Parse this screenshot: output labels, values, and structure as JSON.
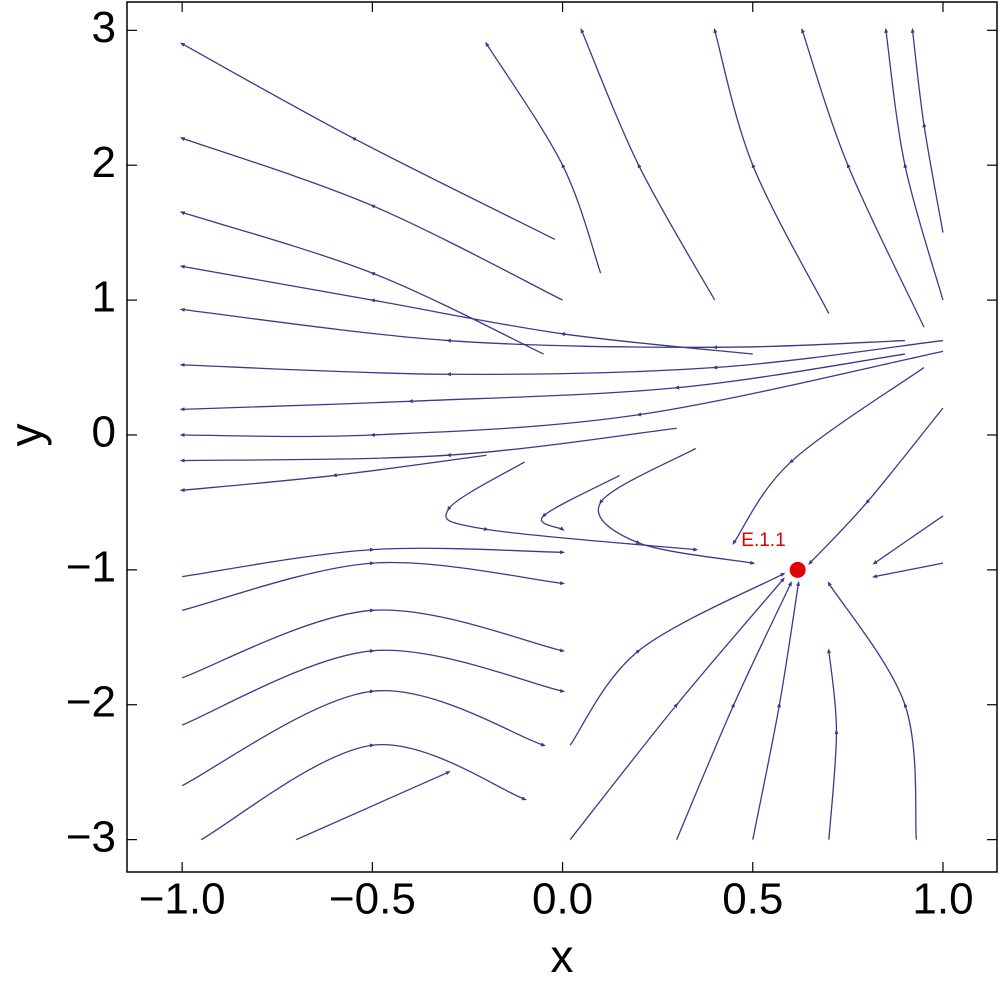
{
  "chart_data": {
    "type": "streamplot",
    "xlabel": "x",
    "ylabel": "y",
    "xlim": [
      -1.145,
      1.142
    ],
    "ylim": [
      -3.24,
      3.21
    ],
    "xticks": [
      {
        "value": -1,
        "label": "−1.0"
      },
      {
        "value": -0.5,
        "label": "−0.5"
      },
      {
        "value": 0,
        "label": "0.0"
      },
      {
        "value": 0.5,
        "label": "0.5"
      },
      {
        "value": 1,
        "label": "1.0"
      }
    ],
    "yticks": [
      {
        "value": -3,
        "label": "−3"
      },
      {
        "value": -2,
        "label": "−2"
      },
      {
        "value": -1,
        "label": "−1"
      },
      0,
      1,
      2,
      3
    ],
    "streamlines": {
      "color": "#3a3a8c",
      "lines": [
        {
          "x": [
            -0.02,
            -0.55,
            -1
          ],
          "y": [
            1.45,
            2.2,
            2.9
          ]
        },
        {
          "x": [
            0,
            -0.5,
            -1
          ],
          "y": [
            1.0,
            1.7,
            2.2
          ]
        },
        {
          "x": [
            -0.05,
            -0.5,
            -1
          ],
          "y": [
            0.6,
            1.2,
            1.65
          ]
        },
        {
          "x": [
            0.5,
            0,
            -0.5,
            -1
          ],
          "y": [
            0.6,
            0.75,
            1.0,
            1.25
          ]
        },
        {
          "x": [
            0.9,
            0.4,
            -0.3,
            -1
          ],
          "y": [
            0.7,
            0.65,
            0.7,
            0.93
          ]
        },
        {
          "x": [
            1,
            0.4,
            -0.3,
            -1
          ],
          "y": [
            0.7,
            0.5,
            0.45,
            0.52
          ]
        },
        {
          "x": [
            0.9,
            0.3,
            -0.4,
            -1
          ],
          "y": [
            0.6,
            0.35,
            0.25,
            0.19
          ]
        },
        {
          "x": [
            1,
            0.2,
            -0.5,
            -1
          ],
          "y": [
            0.62,
            0.15,
            0.0,
            0.0
          ]
        },
        {
          "x": [
            0.3,
            -0.3,
            -1
          ],
          "y": [
            0.05,
            -0.15,
            -0.19
          ]
        },
        {
          "x": [
            -0.2,
            -0.6,
            -1
          ],
          "y": [
            -0.15,
            -0.3,
            -0.41
          ]
        },
        {
          "x": [
            0.1,
            0.0,
            -0.2
          ],
          "y": [
            1.2,
            2.0,
            2.9
          ]
        },
        {
          "x": [
            0.4,
            0.2,
            0.05
          ],
          "y": [
            1.0,
            2.0,
            3.0
          ]
        },
        {
          "x": [
            0.7,
            0.5,
            0.4
          ],
          "y": [
            0.9,
            2.0,
            3.0
          ]
        },
        {
          "x": [
            0.95,
            0.75,
            0.63
          ],
          "y": [
            0.8,
            2.0,
            3.0
          ]
        },
        {
          "x": [
            1,
            0.9,
            0.85
          ],
          "y": [
            1.0,
            2.0,
            3.0
          ]
        },
        {
          "x": [
            1,
            0.95,
            0.92
          ],
          "y": [
            1.5,
            2.3,
            3.0
          ]
        },
        {
          "x": [
            0.95,
            0.6,
            0.45
          ],
          "y": [
            0.5,
            -0.2,
            -0.8
          ]
        },
        {
          "x": [
            0.35,
            0.1,
            0.2,
            0.5
          ],
          "y": [
            -0.1,
            -0.5,
            -0.8,
            -0.95
          ]
        },
        {
          "x": [
            0.15,
            -0.05,
            0.0
          ],
          "y": [
            -0.3,
            -0.6,
            -0.7
          ]
        },
        {
          "x": [
            -0.1,
            -0.3,
            -0.2,
            0.35
          ],
          "y": [
            -0.2,
            -0.55,
            -0.7,
            -0.85
          ]
        },
        {
          "x": [
            1,
            0.8,
            0.65
          ],
          "y": [
            0.2,
            -0.5,
            -0.95
          ]
        },
        {
          "x": [
            -1,
            -0.5,
            0
          ],
          "y": [
            -1.05,
            -0.85,
            -0.87
          ]
        },
        {
          "x": [
            -1,
            -0.5,
            0
          ],
          "y": [
            -1.3,
            -0.95,
            -1.1
          ]
        },
        {
          "x": [
            -1,
            -0.5,
            0
          ],
          "y": [
            -1.8,
            -1.3,
            -1.6
          ]
        },
        {
          "x": [
            -1,
            -0.5,
            0
          ],
          "y": [
            -2.15,
            -1.6,
            -1.9
          ]
        },
        {
          "x": [
            -1,
            -0.5,
            -0.05
          ],
          "y": [
            -2.6,
            -1.9,
            -2.3
          ]
        },
        {
          "x": [
            -0.95,
            -0.5,
            -0.1
          ],
          "y": [
            -3,
            -2.3,
            -2.7
          ]
        },
        {
          "x": [
            -0.7,
            -0.3
          ],
          "y": [
            -3,
            -2.5
          ]
        },
        {
          "x": [
            0.02,
            0.2,
            0.58
          ],
          "y": [
            -2.3,
            -1.6,
            -1.03
          ]
        },
        {
          "x": [
            0.02,
            0.3,
            0.58
          ],
          "y": [
            -3,
            -2.0,
            -1.07
          ]
        },
        {
          "x": [
            0.3,
            0.45,
            0.6
          ],
          "y": [
            -3,
            -2.0,
            -1.1
          ]
        },
        {
          "x": [
            0.5,
            0.57,
            0.62
          ],
          "y": [
            -3,
            -2.0,
            -1.1
          ]
        },
        {
          "x": [
            0.7,
            0.72,
            0.7
          ],
          "y": [
            -3,
            -2.2,
            -1.6
          ]
        },
        {
          "x": [
            0.93,
            0.9,
            0.7
          ],
          "y": [
            -3,
            -2.0,
            -1.1
          ]
        },
        {
          "x": [
            1,
            0.82
          ],
          "y": [
            -0.6,
            -0.95
          ]
        },
        {
          "x": [
            1,
            0.82
          ],
          "y": [
            -0.95,
            -1.05
          ]
        }
      ]
    },
    "points": [
      {
        "x": 0.618,
        "y": -1,
        "label": "E.1.1",
        "color": "#e00000"
      }
    ]
  }
}
